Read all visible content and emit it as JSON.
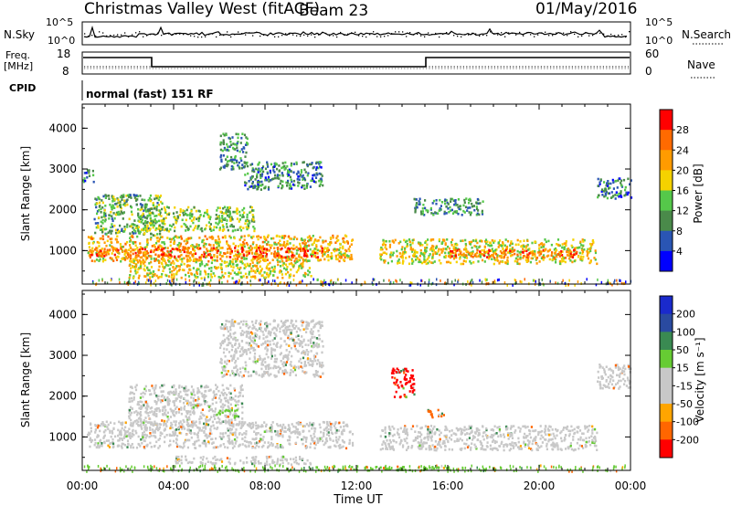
{
  "header": {
    "station": "Christmas Valley West (fitACF)",
    "beam": "Beam 23",
    "date": "01/May/2016"
  },
  "left_labels": {
    "nsky": "N.Sky",
    "freq": "Freq.",
    "mhz": "[MHz]",
    "cpid": "CPID"
  },
  "right_labels": {
    "nsearch": "N.Search",
    "nave": "Nave"
  },
  "noise_axis": {
    "left_ticks": [
      "10^5",
      "10^0"
    ],
    "right_ticks": [
      "10^5",
      "10^0"
    ]
  },
  "freq_axis": {
    "left_ticks": [
      "18",
      "8"
    ],
    "right_ticks": [
      "60",
      "0"
    ]
  },
  "cpid_text": "normal (fast) 151 RF",
  "colors": {
    "power": [
      "#0000ff",
      "#2a55b4",
      "#4a8a4a",
      "#55c84a",
      "#f5d200",
      "#ff9b00",
      "#ff6a00",
      "#ff0000"
    ],
    "velocity": [
      "#ff0000",
      "#ff6600",
      "#ffa500",
      "#c8c8c8",
      "#c8c8c8",
      "#66cc33",
      "#3a8a52",
      "#2a4aa0",
      "#1a2acc"
    ],
    "ground": "#c8c8c8"
  },
  "chart_data": [
    {
      "type": "heatmap",
      "name": "power",
      "ylabel": "Slant Range [km]",
      "y_ticks": [
        "1000",
        "2000",
        "3000",
        "4000"
      ],
      "ylim": [
        180,
        4590
      ],
      "x_ticks": [
        "00:00",
        "04:00",
        "08:00",
        "12:00",
        "16:00",
        "20:00",
        "00:00"
      ],
      "xlim_hours": [
        0,
        24
      ],
      "colorbar": {
        "label": "Power [dB]",
        "ticks": [
          "4",
          "8",
          "12",
          "16",
          "20",
          "24",
          "28"
        ],
        "range": [
          0,
          32
        ]
      },
      "regions": [
        {
          "t": [
            0.2,
            11.8
          ],
          "r": [
            750,
            1400
          ],
          "level": 20
        },
        {
          "t": [
            0.3,
            10.5
          ],
          "r": [
            850,
            1100
          ],
          "level": 26
        },
        {
          "t": [
            2.0,
            10.0
          ],
          "r": [
            350,
            800
          ],
          "level": 18
        },
        {
          "t": [
            0.5,
            3.5
          ],
          "r": [
            1400,
            2400
          ],
          "level": 12
        },
        {
          "t": [
            2.5,
            7.5
          ],
          "r": [
            1500,
            2100
          ],
          "level": 14
        },
        {
          "t": [
            6.0,
            7.2
          ],
          "r": [
            3000,
            3900
          ],
          "level": 10
        },
        {
          "t": [
            7.0,
            10.5
          ],
          "r": [
            2500,
            3200
          ],
          "level": 9
        },
        {
          "t": [
            13.0,
            22.5
          ],
          "r": [
            700,
            1300
          ],
          "level": 18
        },
        {
          "t": [
            16.0,
            22.0
          ],
          "r": [
            850,
            1050
          ],
          "level": 25
        },
        {
          "t": [
            14.5,
            17.5
          ],
          "r": [
            1900,
            2300
          ],
          "level": 10
        },
        {
          "t": [
            22.5,
            24.0
          ],
          "r": [
            2300,
            2800
          ],
          "level": 8
        },
        {
          "t": [
            0.0,
            0.5
          ],
          "r": [
            2700,
            3000
          ],
          "level": 8
        }
      ]
    },
    {
      "type": "heatmap",
      "name": "velocity",
      "ylabel": "Slant Range [km]",
      "y_ticks": [
        "1000",
        "2000",
        "3000",
        "4000"
      ],
      "ylim": [
        180,
        4590
      ],
      "x_ticks": [
        "00:00",
        "04:00",
        "08:00",
        "12:00",
        "16:00",
        "20:00",
        "00:00"
      ],
      "xlim_hours": [
        0,
        24
      ],
      "xlabel": "Time UT",
      "colorbar": {
        "label": "Velocity [m s⁻¹]",
        "ticks": [
          "200",
          "100",
          "50",
          "15",
          "-15",
          "-50",
          "-100",
          "-200"
        ],
        "range": [
          -250,
          250
        ]
      },
      "regions": [
        {
          "t": [
            0.2,
            11.8
          ],
          "r": [
            750,
            1400
          ],
          "v": 0
        },
        {
          "t": [
            13.0,
            22.5
          ],
          "r": [
            700,
            1300
          ],
          "v": 0
        },
        {
          "t": [
            2.0,
            7.0
          ],
          "r": [
            1300,
            2300
          ],
          "v": 0
        },
        {
          "t": [
            5.8,
            6.8
          ],
          "r": [
            1500,
            1700
          ],
          "v": 60
        },
        {
          "t": [
            13.5,
            14.5
          ],
          "r": [
            2000,
            2700
          ],
          "v": -200
        },
        {
          "t": [
            15.0,
            15.8
          ],
          "r": [
            1500,
            1700
          ],
          "v": -80
        },
        {
          "t": [
            4.0,
            10.0
          ],
          "r": [
            350,
            550
          ],
          "v": 25
        },
        {
          "t": [
            11.0,
            16.0
          ],
          "r": [
            200,
            300
          ],
          "v": 30
        },
        {
          "t": [
            6.0,
            10.5
          ],
          "r": [
            2500,
            3900
          ],
          "v": 0
        },
        {
          "t": [
            22.5,
            24.0
          ],
          "r": [
            2200,
            2800
          ],
          "v": 0
        }
      ]
    }
  ]
}
